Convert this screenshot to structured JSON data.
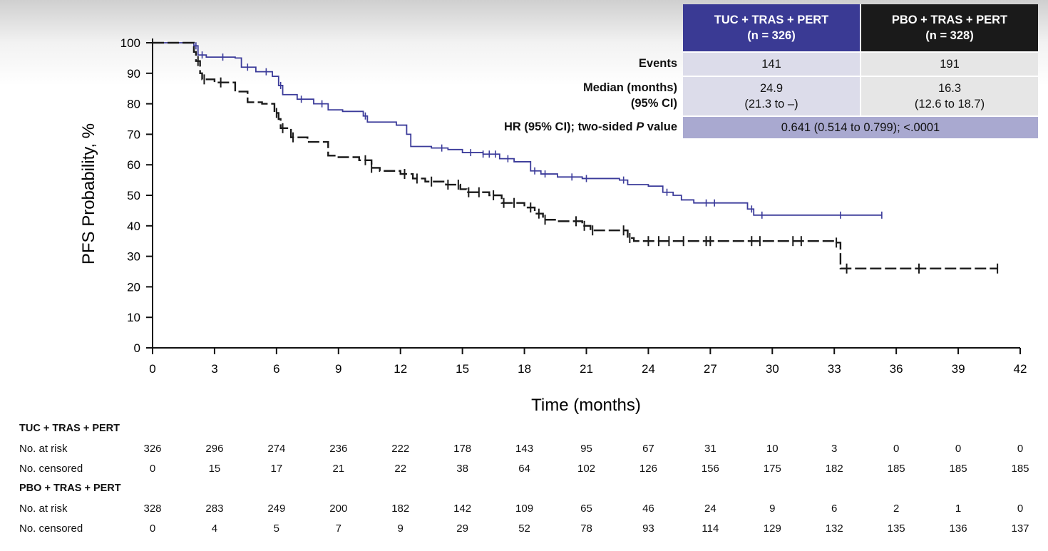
{
  "chart_data": {
    "type": "line",
    "subtype": "kaplan-meier",
    "xlabel": "Time (months)",
    "ylabel": "PFS Probability, %",
    "xlim": [
      0,
      42
    ],
    "ylim": [
      0,
      100
    ],
    "xticks": [
      "0",
      "3",
      "6",
      "9",
      "12",
      "15",
      "18",
      "21",
      "24",
      "27",
      "30",
      "33",
      "36",
      "39",
      "42"
    ],
    "yticks": [
      "0",
      "10",
      "20",
      "30",
      "40",
      "50",
      "60",
      "70",
      "80",
      "90",
      "100"
    ],
    "series": [
      {
        "name": "TUC + TRAS + PERT",
        "color": "#3b3b9a",
        "style": "solid",
        "points": [
          [
            0,
            100
          ],
          [
            1.8,
            100
          ],
          [
            2.0,
            99
          ],
          [
            2.2,
            96
          ],
          [
            2.6,
            95.3
          ],
          [
            4.0,
            95
          ],
          [
            4.3,
            92
          ],
          [
            5.0,
            90.5
          ],
          [
            5.8,
            89
          ],
          [
            6.1,
            86
          ],
          [
            6.3,
            83
          ],
          [
            7.0,
            81.5
          ],
          [
            7.8,
            80
          ],
          [
            8.5,
            78
          ],
          [
            9.2,
            77.5
          ],
          [
            10.2,
            76
          ],
          [
            10.4,
            74
          ],
          [
            11.8,
            73
          ],
          [
            12.3,
            70
          ],
          [
            12.5,
            66
          ],
          [
            13.5,
            65.5
          ],
          [
            14.3,
            65
          ],
          [
            15.0,
            64
          ],
          [
            16.0,
            63.5
          ],
          [
            16.8,
            62
          ],
          [
            17.5,
            61
          ],
          [
            18.3,
            58
          ],
          [
            18.8,
            57
          ],
          [
            19.6,
            56
          ],
          [
            20.8,
            55.5
          ],
          [
            22.0,
            55.5
          ],
          [
            22.6,
            55
          ],
          [
            23.0,
            53.5
          ],
          [
            24.0,
            53
          ],
          [
            24.7,
            51
          ],
          [
            25.2,
            50
          ],
          [
            25.6,
            48.5
          ],
          [
            26.2,
            47.5
          ],
          [
            28.8,
            45.5
          ],
          [
            29.1,
            43.5
          ],
          [
            35.3,
            43.5
          ]
        ],
        "censor_x": [
          2.1,
          2.4,
          3.4,
          4.6,
          5.5,
          6.2,
          7.2,
          8.2,
          10.3,
          14.0,
          15.4,
          16.0,
          16.3,
          16.6,
          17.2,
          18.5,
          19.0,
          20.3,
          21.0,
          22.8,
          24.9,
          26.8,
          27.2,
          29.0,
          29.5,
          33.3,
          35.3
        ]
      },
      {
        "name": "PBO + TRAS + PERT",
        "color": "#1a1a1a",
        "style": "dashed",
        "points": [
          [
            0,
            100
          ],
          [
            1.7,
            100
          ],
          [
            2.0,
            97
          ],
          [
            2.1,
            94
          ],
          [
            2.3,
            90
          ],
          [
            2.4,
            88
          ],
          [
            3.0,
            87
          ],
          [
            4.0,
            84
          ],
          [
            4.6,
            80.5
          ],
          [
            5.3,
            80
          ],
          [
            5.9,
            77
          ],
          [
            6.1,
            75
          ],
          [
            6.2,
            72
          ],
          [
            6.7,
            69
          ],
          [
            7.5,
            67.5
          ],
          [
            8.5,
            63
          ],
          [
            9.0,
            62.5
          ],
          [
            10.0,
            61.5
          ],
          [
            10.6,
            59
          ],
          [
            11.0,
            58
          ],
          [
            12.0,
            57
          ],
          [
            12.6,
            55.5
          ],
          [
            13.2,
            54.5
          ],
          [
            14.2,
            53.5
          ],
          [
            14.9,
            52
          ],
          [
            15.2,
            51
          ],
          [
            16.3,
            50
          ],
          [
            16.9,
            47.5
          ],
          [
            18.0,
            46
          ],
          [
            18.5,
            44
          ],
          [
            18.9,
            42
          ],
          [
            19.6,
            41.5
          ],
          [
            20.8,
            40
          ],
          [
            21.2,
            38.5
          ],
          [
            23.0,
            36
          ],
          [
            23.3,
            35
          ],
          [
            33.1,
            34.5
          ],
          [
            33.3,
            26
          ],
          [
            40.9,
            26
          ]
        ],
        "censor_x": [
          2.2,
          2.5,
          3.3,
          6.0,
          6.3,
          6.8,
          10.3,
          10.6,
          12.2,
          12.8,
          13.5,
          14.3,
          14.8,
          15.3,
          15.8,
          16.5,
          17.0,
          17.5,
          18.3,
          18.7,
          19.0,
          20.5,
          20.9,
          21.3,
          22.8,
          23.1,
          24.0,
          24.5,
          25.0,
          25.7,
          26.8,
          27.0,
          29.0,
          29.4,
          31.0,
          31.4,
          33.1,
          33.6,
          37.1,
          40.9
        ]
      }
    ],
    "stats_table": {
      "col1_header_line1": "TUC + TRAS + PERT",
      "col1_header_line2": "(n = 326)",
      "col2_header_line1": "PBO + TRAS + PERT",
      "col2_header_line2": "(n = 328)",
      "events_label": "Events",
      "events": [
        "141",
        "191"
      ],
      "median_label_line1": "Median (months)",
      "median_label_line2": "(95% CI)",
      "median": [
        "24.9",
        "16.3"
      ],
      "median_ci": [
        "(21.3 to –)",
        "(12.6 to 18.7)"
      ],
      "hr_label_prefix": "HR (95% CI); two-sided ",
      "hr_label_p": "P",
      "hr_label_suffix": " value",
      "hr_value": "0.641 (0.514 to 0.799); <.0001"
    },
    "risk_table": {
      "times": [
        "0",
        "3",
        "6",
        "9",
        "12",
        "15",
        "18",
        "21",
        "24",
        "27",
        "30",
        "33",
        "36",
        "39",
        "42"
      ],
      "groups": [
        {
          "name": "TUC + TRAS + PERT",
          "at_risk_label": "No. at risk",
          "at_risk": [
            "326",
            "296",
            "274",
            "236",
            "222",
            "178",
            "143",
            "95",
            "67",
            "31",
            "10",
            "3",
            "0",
            "0",
            "0"
          ],
          "censored_label": "No. censored",
          "censored": [
            "0",
            "15",
            "17",
            "21",
            "22",
            "38",
            "64",
            "102",
            "126",
            "156",
            "175",
            "182",
            "185",
            "185",
            "185"
          ]
        },
        {
          "name": "PBO + TRAS + PERT",
          "at_risk_label": "No. at risk",
          "at_risk": [
            "328",
            "283",
            "249",
            "200",
            "182",
            "142",
            "109",
            "65",
            "46",
            "24",
            "9",
            "6",
            "2",
            "1",
            "0"
          ],
          "censored_label": "No. censored",
          "censored": [
            "0",
            "4",
            "5",
            "7",
            "9",
            "29",
            "52",
            "78",
            "93",
            "114",
            "129",
            "132",
            "135",
            "136",
            "137"
          ]
        }
      ]
    }
  }
}
